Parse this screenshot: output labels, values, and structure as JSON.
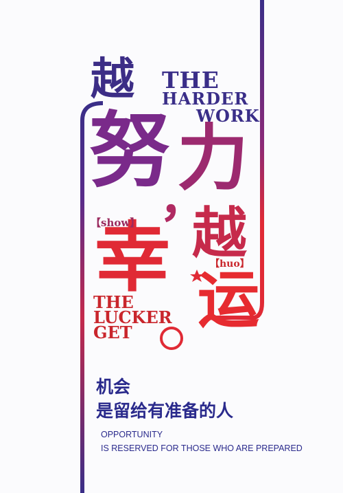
{
  "headline": {
    "yue_top": "越",
    "nu": "努",
    "comma": "，",
    "li": "力",
    "yue_mid": "越",
    "xing": "幸",
    "yun": "运"
  },
  "english": {
    "the_1": "THE",
    "harder": "HARDER",
    "work": "WORK",
    "the_2": "THE",
    "lucker": "LUCKER",
    "get": "GET"
  },
  "pinyin": {
    "show": "【show】",
    "huo": "【huo】"
  },
  "tagline": {
    "line1": "机会",
    "line2": "是留给有准备的人"
  },
  "caption": {
    "line1": "OPPORTUNITY",
    "line2": "IS RESERVED FOR THOSE WHO ARE PREPARED"
  },
  "colors": {
    "blue": "#3a2e88",
    "purple": "#7a2a8a",
    "red": "#e02a35"
  }
}
